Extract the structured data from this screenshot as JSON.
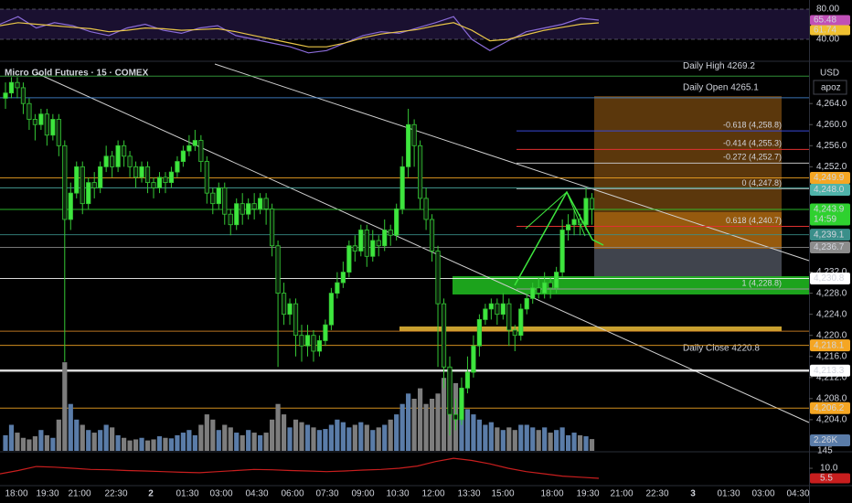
{
  "chart_data": {
    "type": "candlestick",
    "title": "Micro Gold Futures · 15 · COMEX",
    "currency": "USD",
    "account": "apoz",
    "up_color": "#3ee63e",
    "down_color": "#0c240c",
    "wick_color": "#35c935",
    "open": [
      4265,
      4266,
      4268,
      4267,
      4264,
      4261,
      4260,
      4262,
      4258,
      4261,
      4256,
      4242,
      4247,
      4252,
      4245,
      4249,
      4248,
      4252,
      4254,
      4252,
      4256,
      4254,
      4252,
      4250,
      4252,
      4249,
      4248,
      4250,
      4249,
      4251,
      4253,
      4255,
      4256,
      4257,
      4253,
      4247,
      4245,
      4248,
      4243,
      4241,
      4245,
      4243,
      4245,
      4244,
      4246,
      4244,
      4237,
      4228,
      4224,
      4226,
      4220,
      4218,
      4220,
      4217,
      4219,
      4222,
      4228,
      4230,
      4232,
      4237,
      4236,
      4240,
      4235,
      4238,
      4237,
      4240,
      4239,
      4244,
      4252,
      4260,
      4256,
      4246,
      4242,
      4236,
      4226,
      4214,
      4205,
      4204,
      4210,
      4213,
      4218,
      4223,
      4225,
      4226,
      4224,
      4226,
      4221,
      4220,
      4225,
      4227,
      4229,
      4228,
      4230,
      4229,
      4232,
      4240,
      4241,
      4242,
      4241,
      4246
    ],
    "high": [
      4268,
      4269,
      4269,
      4268,
      4265,
      4262,
      4263,
      4263,
      4262,
      4262,
      4257,
      4249,
      4253,
      4253,
      4250,
      4251,
      4253,
      4256,
      4255,
      4257,
      4257,
      4255,
      4253,
      4253,
      4253,
      4250,
      4251,
      4251,
      4252,
      4254,
      4256,
      4258,
      4259,
      4258,
      4254,
      4248,
      4249,
      4249,
      4244,
      4246,
      4247,
      4246,
      4247,
      4247,
      4247,
      4245,
      4238,
      4230,
      4227,
      4227,
      4222,
      4222,
      4221,
      4220,
      4223,
      4229,
      4232,
      4234,
      4238,
      4239,
      4241,
      4241,
      4240,
      4239,
      4242,
      4241,
      4245,
      4254,
      4263,
      4261,
      4257,
      4248,
      4243,
      4237,
      4227,
      4216,
      4208,
      4212,
      4216,
      4220,
      4224,
      4226,
      4227,
      4227,
      4228,
      4227,
      4222,
      4226,
      4228,
      4230,
      4231,
      4232,
      4231,
      4233,
      4242,
      4243,
      4244,
      4243,
      4248,
      4247
    ],
    "low": [
      4263,
      4265,
      4265,
      4262,
      4259,
      4257,
      4259,
      4256,
      4257,
      4254,
      4215,
      4240,
      4246,
      4243,
      4244,
      4246,
      4247,
      4251,
      4250,
      4251,
      4252,
      4250,
      4248,
      4249,
      4247,
      4246,
      4247,
      4247,
      4248,
      4250,
      4252,
      4254,
      4255,
      4251,
      4245,
      4243,
      4244,
      4241,
      4239,
      4240,
      4241,
      4242,
      4242,
      4243,
      4241,
      4235,
      4214,
      4222,
      4222,
      4216,
      4215,
      4216,
      4215,
      4216,
      4218,
      4221,
      4227,
      4229,
      4231,
      4234,
      4235,
      4233,
      4234,
      4235,
      4236,
      4237,
      4238,
      4243,
      4250,
      4252,
      4244,
      4240,
      4234,
      4214,
      4210,
      4201,
      4202,
      4203,
      4209,
      4212,
      4216,
      4222,
      4223,
      4222,
      4223,
      4218,
      4217,
      4219,
      4224,
      4226,
      4227,
      4227,
      4227,
      4228,
      4231,
      4238,
      4239,
      4239,
      4240,
      4241
    ],
    "close": [
      4266,
      4268,
      4267,
      4264,
      4261,
      4260,
      4262,
      4258,
      4261,
      4256,
      4242,
      4247,
      4252,
      4245,
      4249,
      4248,
      4252,
      4254,
      4252,
      4256,
      4254,
      4252,
      4250,
      4252,
      4249,
      4248,
      4250,
      4249,
      4251,
      4253,
      4255,
      4256,
      4257,
      4253,
      4247,
      4245,
      4248,
      4243,
      4241,
      4245,
      4243,
      4245,
      4244,
      4246,
      4244,
      4237,
      4228,
      4224,
      4226,
      4220,
      4218,
      4220,
      4217,
      4219,
      4222,
      4228,
      4230,
      4232,
      4237,
      4236,
      4240,
      4235,
      4238,
      4237,
      4240,
      4239,
      4244,
      4252,
      4260,
      4256,
      4246,
      4242,
      4236,
      4226,
      4214,
      4205,
      4204,
      4210,
      4213,
      4218,
      4223,
      4225,
      4226,
      4224,
      4226,
      4221,
      4220,
      4225,
      4227,
      4229,
      4228,
      4230,
      4229,
      4232,
      4240,
      4241,
      4242,
      4241,
      4246,
      4244
    ],
    "ylim": [
      4198.6,
      4271.5
    ],
    "yticks": [
      {
        "value": 4264,
        "label": "4,264.0"
      },
      {
        "value": 4260,
        "label": "4,260.0"
      },
      {
        "value": 4256,
        "label": "4,256.0"
      },
      {
        "value": 4252,
        "label": "4,252.0"
      },
      {
        "value": 4232,
        "label": "4,232.0"
      },
      {
        "value": 4228,
        "label": "4,228.0"
      },
      {
        "value": 4224,
        "label": "4,224.0"
      },
      {
        "value": 4220,
        "label": "4,220.0"
      },
      {
        "value": 4216,
        "label": "4,216.0"
      },
      {
        "value": 4212,
        "label": "4,212.0"
      },
      {
        "value": 4208,
        "label": "4,208.0"
      },
      {
        "value": 4204,
        "label": "4,204.0"
      }
    ],
    "x_labels": [
      "18:00",
      "19:30",
      "21:00",
      "22:30",
      "2",
      "01:30",
      "03:00",
      "04:30",
      "06:00",
      "07:30",
      "09:00",
      "10:30",
      "12:00",
      "13:30",
      "15:00",
      "18:00",
      "19:30",
      "21:00",
      "22:30",
      "3",
      "01:30",
      "03:00",
      "04:30"
    ],
    "volume": [
      3000,
      5000,
      3500,
      2500,
      2200,
      2800,
      4000,
      3000,
      2500,
      6000,
      17000,
      9000,
      6000,
      5000,
      4000,
      3500,
      4000,
      5000,
      4500,
      3000,
      2500,
      2000,
      2200,
      2500,
      2000,
      2200,
      2800,
      2500,
      2400,
      3000,
      3500,
      4000,
      3000,
      5000,
      7000,
      6000,
      4000,
      5000,
      4500,
      3500,
      3000,
      4000,
      3500,
      3000,
      3500,
      6000,
      9000,
      7000,
      4500,
      6000,
      5500,
      5000,
      4500,
      4000,
      4200,
      5000,
      6000,
      5500,
      4500,
      5000,
      5500,
      5000,
      4000,
      4500,
      5000,
      6000,
      7000,
      9000,
      11000,
      10000,
      12000,
      9000,
      10000,
      11000,
      14000,
      15000,
      13000,
      12000,
      8000,
      7000,
      6000,
      5000,
      5500,
      4500,
      4000,
      4500,
      4000,
      5000,
      5000,
      4500,
      4000,
      4500,
      3500,
      4000,
      4500,
      3000,
      3500,
      3000,
      2800,
      2260
    ],
    "volume_up_color": "#5a7ca8",
    "volume_down_color": "#7d7d7d",
    "volume_value_label": "2.26K",
    "volume_ma_label": "145",
    "levels": [
      {
        "value": 4249.9,
        "label": "4,249.9",
        "color": "#f5a623"
      },
      {
        "value": 4248.0,
        "label": "4,248.0",
        "color": "#4fb3a9"
      },
      {
        "value": 4243.9,
        "label": "4,243.9",
        "color": "#2fd12f"
      },
      {
        "value": 4239.1,
        "label": "4,239.1",
        "color": "#3a8f8a"
      },
      {
        "value": 4236.7,
        "label": "4,236.7",
        "color": "#8c8c8c"
      },
      {
        "value": 4230.8,
        "label": "4,230.8",
        "color": "#ffffff"
      },
      {
        "value": 4218.1,
        "label": "4,218.1",
        "color": "#f5a623"
      },
      {
        "value": 4213.3,
        "label": "4,213.3",
        "color": "#ffffff"
      },
      {
        "value": 4206.2,
        "label": "4,206.2",
        "color": "#f5a623"
      }
    ],
    "countdown": "14:59",
    "annotations": [
      {
        "text": "Daily High 4269.2",
        "value": 4269.2,
        "color": "#3cb043"
      },
      {
        "text": "Daily Open 4265.1",
        "value": 4265.1,
        "color": "#4a90e2"
      },
      {
        "text": "Daily Close 4220.8",
        "value": 4220.8,
        "color": "#e8902a"
      }
    ],
    "fib": [
      {
        "label": "-0.618 (4,258.8)",
        "value": 4258.8,
        "color": "#3848d8"
      },
      {
        "label": "-0.414 (4,255.3)",
        "value": 4255.3,
        "color": "#e03030"
      },
      {
        "label": "-0.272 (4,252.7)",
        "value": 4252.7,
        "color": "#c0c0c0"
      },
      {
        "label": "0 (4,247.8)",
        "value": 4247.8,
        "color": "#9a9a9a"
      },
      {
        "label": "0.618 (4,240.7)",
        "value": 4240.7,
        "color": "#e03030"
      },
      {
        "label": "1 (4,228.8)",
        "value": 4228.8,
        "color": "#9a9a9a"
      }
    ],
    "rsi": {
      "ylim": [
        13.3,
        92.1
      ],
      "yticks": [
        {
          "value": 80,
          "label": "80.00"
        },
        {
          "value": 40,
          "label": "40.00"
        }
      ],
      "series": [
        {
          "color": "#8a6bd8",
          "values": [
            60,
            70,
            55,
            62,
            58,
            50,
            45,
            55,
            60,
            52,
            48,
            55,
            58,
            45,
            40,
            35,
            30,
            22,
            25,
            35,
            45,
            50,
            48,
            55,
            62,
            70,
            40,
            25,
            38,
            50,
            55,
            60,
            68,
            65.48
          ],
          "value_label": "65.48",
          "tag_color": "#c050b8"
        },
        {
          "color": "#e8c547",
          "values": [
            58,
            62,
            60,
            58,
            56,
            54,
            50,
            52,
            55,
            54,
            52,
            53,
            54,
            50,
            45,
            40,
            35,
            30,
            30,
            35,
            42,
            47,
            50,
            53,
            58,
            62,
            52,
            38,
            40,
            46,
            52,
            56,
            60,
            61.74
          ],
          "value_label": "61.74",
          "tag_color": "#f0c030"
        }
      ]
    },
    "lower": {
      "ylim": [
        1.8,
        17
      ],
      "yticks": [
        {
          "value": 10,
          "label": "10.0"
        }
      ],
      "color": "#c81e1e",
      "values": [
        7.5,
        9,
        10.8,
        10.5,
        10,
        9.5,
        9.3,
        9,
        8.8,
        8.5,
        8.2,
        8,
        8.5,
        9,
        9.5,
        9.3,
        9,
        8.8,
        8.5,
        8.8,
        9.2,
        9.5,
        10,
        11,
        13,
        14.5,
        13.5,
        12,
        10,
        8.5,
        7.5,
        6.5,
        6,
        5.5
      ],
      "value_label": "5.5"
    }
  }
}
